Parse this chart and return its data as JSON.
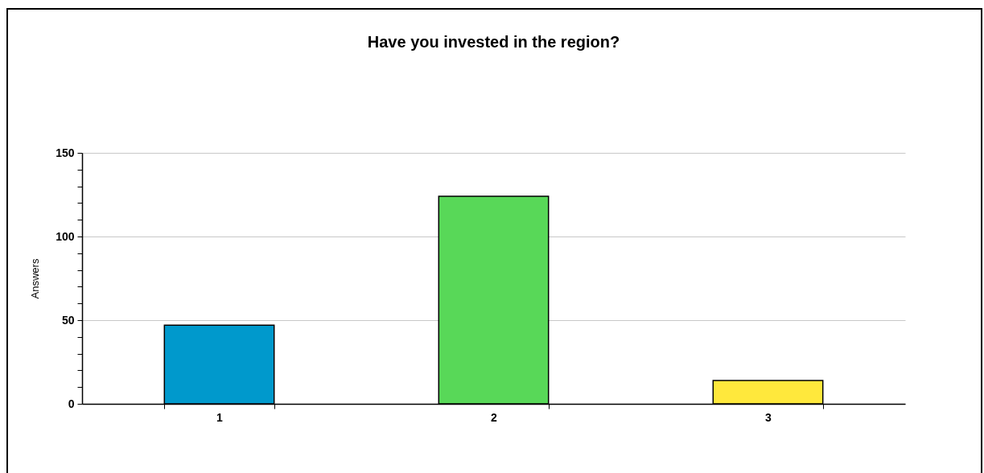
{
  "chart_data": {
    "type": "bar",
    "title": "Have you invested in the region?",
    "ylabel": "Answers",
    "categories": [
      "1",
      "2",
      "3"
    ],
    "values": [
      47,
      124,
      14
    ],
    "colors": [
      "#0099cc",
      "#58d858",
      "#ffe83c"
    ],
    "ylim": [
      0,
      150
    ],
    "yticks": [
      0,
      {
        "value": 10,
        "label": null
      },
      {
        "value": 20,
        "label": null
      },
      {
        "value": 30,
        "label": null
      },
      {
        "value": 40,
        "label": null
      },
      50,
      {
        "value": 60,
        "label": null
      },
      {
        "value": 70,
        "label": null
      },
      {
        "value": 80,
        "label": null
      },
      {
        "value": 90,
        "label": null
      },
      100,
      {
        "value": 110,
        "label": null
      },
      {
        "value": 120,
        "label": null
      },
      {
        "value": 130,
        "label": null
      },
      {
        "value": 140,
        "label": null
      },
      150
    ],
    "grid": "y",
    "legend": false
  }
}
